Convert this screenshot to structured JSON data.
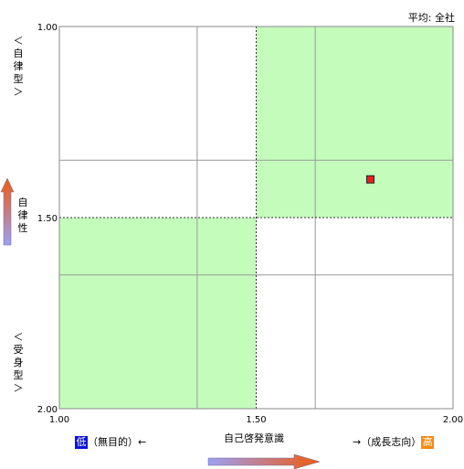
{
  "chart_data": {
    "type": "scatter",
    "title": "",
    "subtitle": "平均: 全社",
    "xlabel": "自己啓発意識",
    "ylabel": "自律性",
    "xlim": [
      1.0,
      2.0
    ],
    "ylim": [
      1.0,
      2.0
    ],
    "y_inverted": true,
    "x_ticks": [
      "1.00",
      "1.50",
      "2.00"
    ],
    "y_ticks": [
      "1.00",
      "1.50",
      "2.00"
    ],
    "x_midline": 1.5,
    "y_midline": 1.5,
    "x_gridlines": [
      1.35,
      1.65
    ],
    "y_gridlines": [
      1.35,
      1.65
    ],
    "highlight_color": "#c4fcbc",
    "point_color": "#e8201c",
    "points": [
      {
        "x": 1.79,
        "y": 1.4
      }
    ]
  },
  "labels": {
    "average": "平均: 全社",
    "y_top": "＜自律型＞",
    "y_bottom": "＜受身型＞",
    "y_axis": "自律性",
    "x_axis": "自己啓発意識",
    "x_left_text": "（無目的）←",
    "x_right_text": "→（成長志向）",
    "low_badge": "低",
    "high_badge": "高"
  },
  "colors": {
    "low_badge": "#0a14d4",
    "high_badge": "#f68a10",
    "arrow_start": "#9ca0f4",
    "arrow_end": "#f05a10"
  }
}
